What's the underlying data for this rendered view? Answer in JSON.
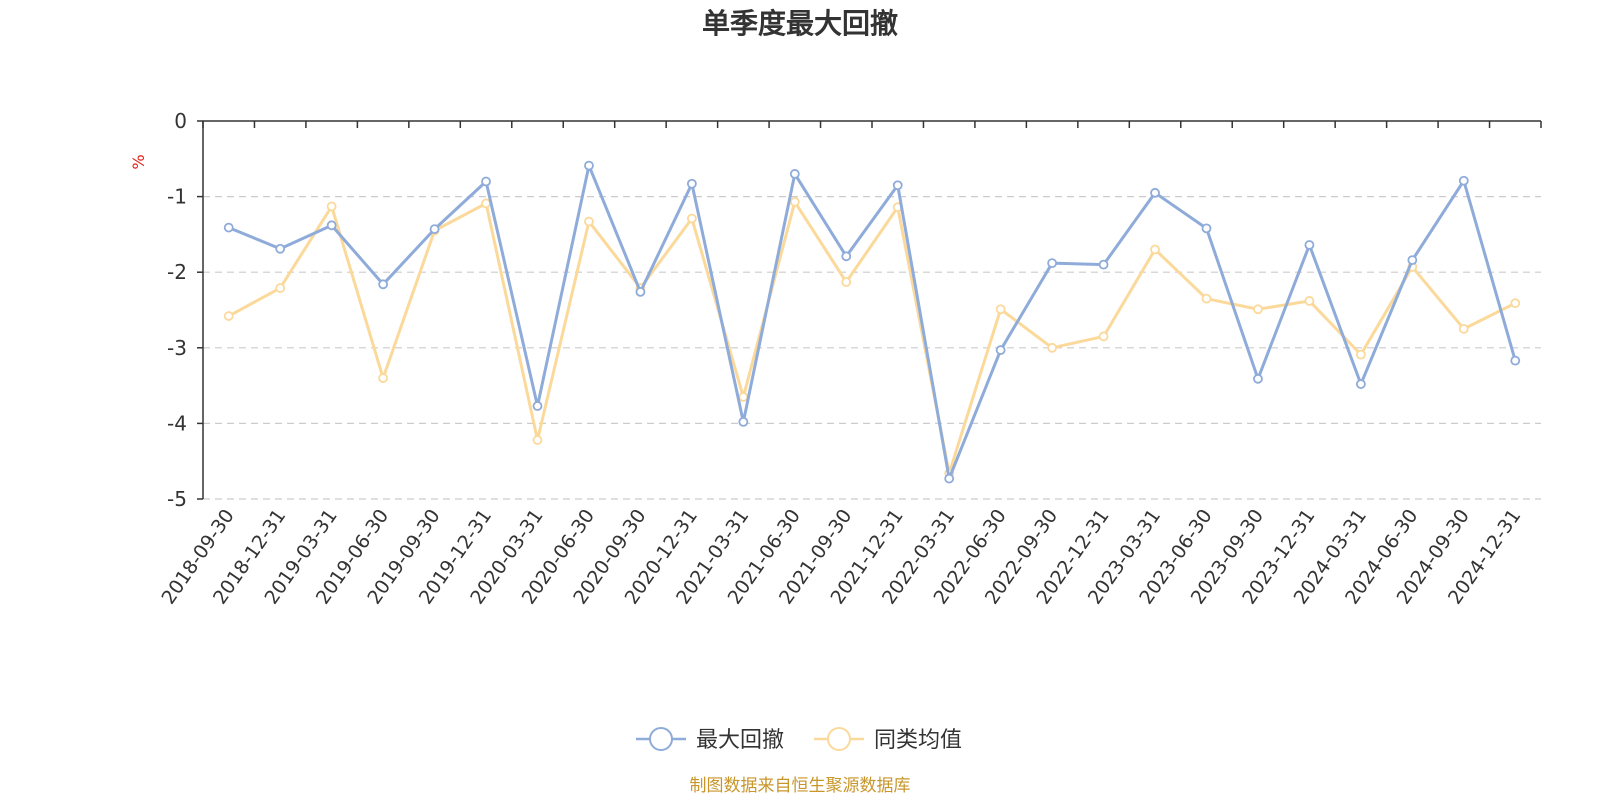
{
  "chart_data": {
    "type": "line",
    "title": "单季度最大回撤",
    "ylabel": "%",
    "ylim": [
      -5,
      0
    ],
    "yticks": [
      0,
      -1,
      -2,
      -3,
      -4,
      -5
    ],
    "grid": true,
    "legend_position": "bottom-center",
    "categories": [
      "2018-09-30",
      "2018-12-31",
      "2019-03-31",
      "2019-06-30",
      "2019-09-30",
      "2019-12-31",
      "2020-03-31",
      "2020-06-30",
      "2020-09-30",
      "2020-12-31",
      "2021-03-31",
      "2021-06-30",
      "2021-09-30",
      "2021-12-31",
      "2022-03-31",
      "2022-06-30",
      "2022-09-30",
      "2022-12-31",
      "2023-03-31",
      "2023-06-30",
      "2023-09-30",
      "2023-12-31",
      "2024-03-31",
      "2024-06-30",
      "2024-09-30",
      "2024-12-31"
    ],
    "series": [
      {
        "name": "最大回撤",
        "color": "#8eabd9",
        "values": [
          -1.41,
          -1.69,
          -1.38,
          -2.16,
          -1.43,
          -0.8,
          -3.77,
          -0.59,
          -2.26,
          -0.83,
          -3.98,
          -0.7,
          -1.79,
          -0.85,
          -4.73,
          -3.03,
          -1.88,
          -1.9,
          -0.95,
          -1.42,
          -3.41,
          -1.64,
          -3.48,
          -1.84,
          -0.79,
          -3.17
        ]
      },
      {
        "name": "同类均值",
        "color": "#fbd99a",
        "values": [
          -2.58,
          -2.21,
          -1.13,
          -3.4,
          -1.45,
          -1.09,
          -4.22,
          -1.33,
          -2.21,
          -1.29,
          -3.65,
          -1.07,
          -2.13,
          -1.14,
          -4.66,
          -2.49,
          -3.0,
          -2.85,
          -1.7,
          -2.35,
          -2.49,
          -2.38,
          -3.09,
          -1.93,
          -2.75,
          -2.41
        ]
      }
    ]
  },
  "unit_color": "#e0201a",
  "source_text": "制图数据来自恒生聚源数据库",
  "source_color": "#c8962a"
}
